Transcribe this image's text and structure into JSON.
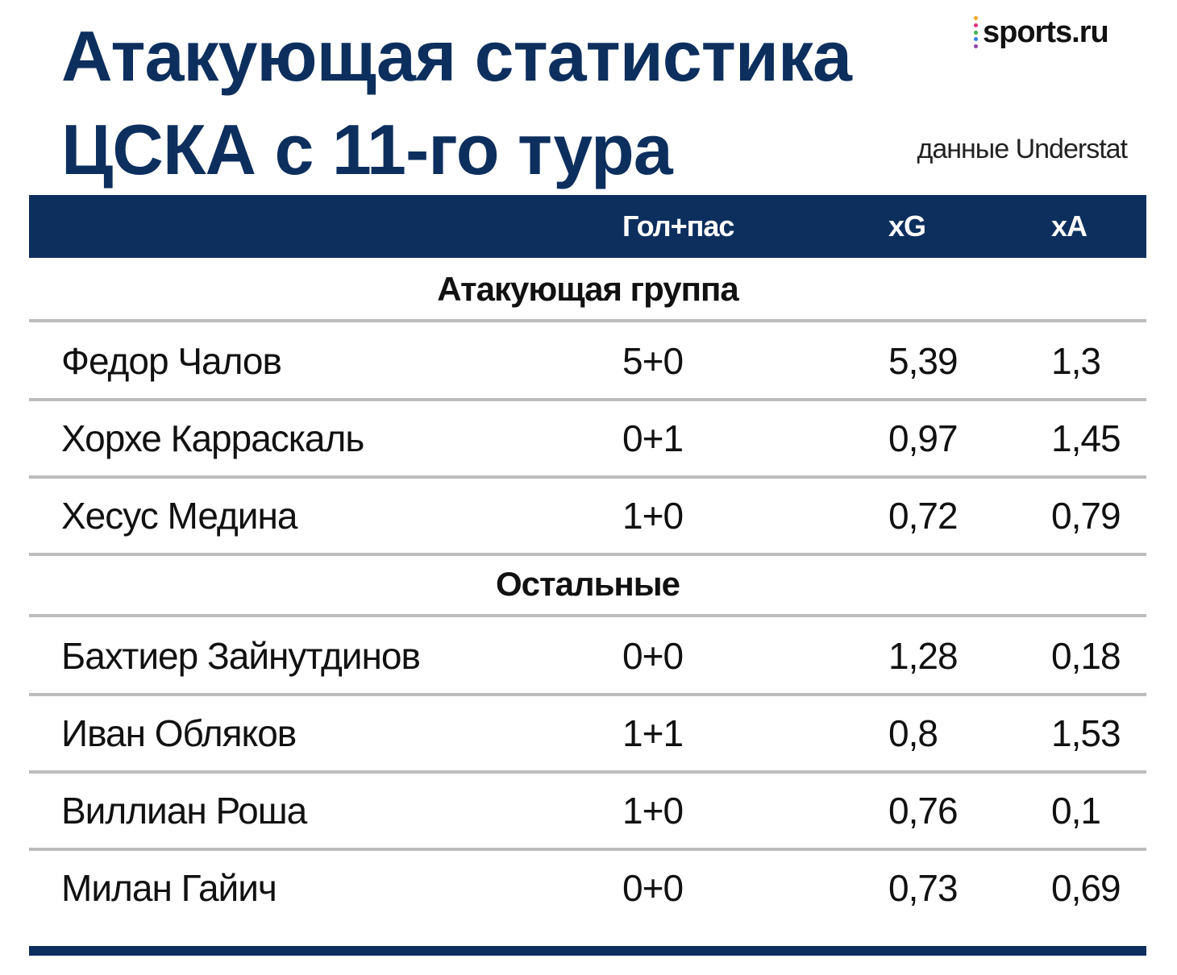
{
  "title": {
    "line1": "Атакующая статистика",
    "line2": "ЦСКА с 11-го тура"
  },
  "logo": {
    "text": "sports.ru",
    "dot_colors": [
      "#f5a623",
      "#e0317a",
      "#3fb34f",
      "#2f80ed",
      "#8e44ad"
    ]
  },
  "source_note": "данные Understat",
  "colors": {
    "navy": "#0d2f5e",
    "rule": "#bcbcbc"
  },
  "chart_data": {
    "type": "table",
    "columns": [
      "",
      "Гол+пас",
      "xG",
      "xA"
    ],
    "groups": [
      {
        "name": "Атакующая группа",
        "rows": [
          {
            "player": "Федор Чалов",
            "goals_assists": "5+0",
            "xg": "5,39",
            "xa": "1,3"
          },
          {
            "player": "Хорхе Карраскаль",
            "goals_assists": "0+1",
            "xg": "0,97",
            "xa": "1,45"
          },
          {
            "player": "Хесус Медина",
            "goals_assists": "1+0",
            "xg": "0,72",
            "xa": "0,79"
          }
        ]
      },
      {
        "name": "Остальные",
        "rows": [
          {
            "player": "Бахтиер Зайнутдинов",
            "goals_assists": "0+0",
            "xg": "1,28",
            "xa": "0,18"
          },
          {
            "player": "Иван Обляков",
            "goals_assists": "1+1",
            "xg": "0,8",
            "xa": "1,53"
          },
          {
            "player": "Виллиан Роша",
            "goals_assists": "1+0",
            "xg": "0,76",
            "xa": "0,1"
          },
          {
            "player": "Милан Гайич",
            "goals_assists": "0+0",
            "xg": "0,73",
            "xa": "0,69"
          }
        ]
      }
    ]
  }
}
